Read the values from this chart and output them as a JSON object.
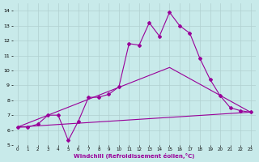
{
  "xlabel": "Windchill (Refroidissement éolien,°C)",
  "bg_color": "#c8eaea",
  "line_color": "#990099",
  "grid_color": "#b0d0d0",
  "xlim": [
    -0.5,
    23.5
  ],
  "ylim": [
    5,
    14.5
  ],
  "yticks": [
    5,
    6,
    7,
    8,
    9,
    10,
    11,
    12,
    13,
    14
  ],
  "xticks": [
    0,
    1,
    2,
    3,
    4,
    5,
    6,
    7,
    8,
    9,
    10,
    11,
    12,
    13,
    14,
    15,
    16,
    17,
    18,
    19,
    20,
    21,
    22,
    23
  ],
  "line1_x": [
    0,
    1,
    2,
    3,
    4,
    5,
    6,
    7,
    8,
    9,
    10,
    11,
    12,
    13,
    14,
    15,
    16,
    17,
    18,
    19,
    20,
    21,
    22,
    23
  ],
  "line1_y": [
    6.2,
    6.2,
    6.4,
    7.0,
    7.0,
    5.3,
    6.6,
    8.2,
    8.2,
    8.4,
    8.9,
    11.8,
    11.7,
    13.2,
    12.3,
    13.9,
    13.0,
    12.5,
    10.8,
    9.4,
    8.3,
    7.5,
    7.3,
    7.2
  ],
  "line2_x": [
    0,
    23
  ],
  "line2_y": [
    6.2,
    7.2
  ],
  "line3_x": [
    0,
    15,
    23
  ],
  "line3_y": [
    6.2,
    10.2,
    7.2
  ],
  "marker": "D",
  "markersize": 2,
  "linewidth": 0.8
}
